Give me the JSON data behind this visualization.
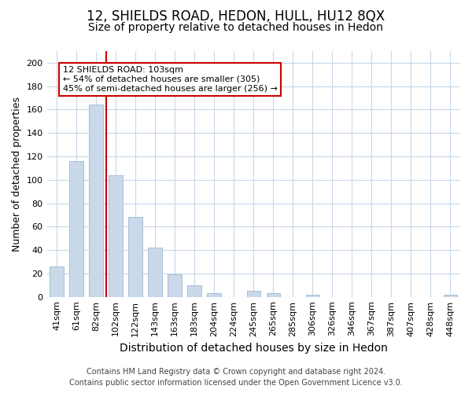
{
  "title": "12, SHIELDS ROAD, HEDON, HULL, HU12 8QX",
  "subtitle": "Size of property relative to detached houses in Hedon",
  "xlabel": "Distribution of detached houses by size in Hedon",
  "ylabel": "Number of detached properties",
  "bar_labels": [
    "41sqm",
    "61sqm",
    "82sqm",
    "102sqm",
    "122sqm",
    "143sqm",
    "163sqm",
    "183sqm",
    "204sqm",
    "224sqm",
    "245sqm",
    "265sqm",
    "285sqm",
    "306sqm",
    "326sqm",
    "346sqm",
    "367sqm",
    "387sqm",
    "407sqm",
    "428sqm",
    "448sqm"
  ],
  "bar_values": [
    26,
    116,
    164,
    104,
    68,
    42,
    19,
    10,
    3,
    0,
    5,
    3,
    0,
    2,
    0,
    0,
    0,
    0,
    0,
    0,
    2
  ],
  "bar_color": "#c9d9ea",
  "bar_edge_color": "#a8bfd4",
  "vline_color": "#cc0000",
  "ylim": [
    0,
    210
  ],
  "yticks": [
    0,
    20,
    40,
    60,
    80,
    100,
    120,
    140,
    160,
    180,
    200
  ],
  "annotation_title": "12 SHIELDS ROAD: 103sqm",
  "annotation_line1": "← 54% of detached houses are smaller (305)",
  "annotation_line2": "45% of semi-detached houses are larger (256) →",
  "annotation_box_color": "#ffffff",
  "annotation_box_edge": "#cc0000",
  "footnote1": "Contains HM Land Registry data © Crown copyright and database right 2024.",
  "footnote2": "Contains public sector information licensed under the Open Government Licence v3.0.",
  "title_fontsize": 12,
  "subtitle_fontsize": 10,
  "xlabel_fontsize": 10,
  "ylabel_fontsize": 9,
  "tick_fontsize": 8,
  "footnote_fontsize": 7,
  "grid_color": "#c8d8e8",
  "bar_width": 0.7
}
